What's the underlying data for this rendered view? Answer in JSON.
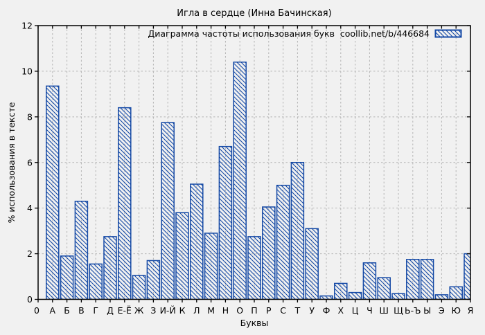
{
  "window": {
    "background": "#f1f1f1"
  },
  "chart_data": {
    "type": "bar",
    "title": "Игла в сердце (Инна Бачинская)",
    "legend_label": "Диаграмма частоты использования букв  coollib.net/b/446684",
    "xlabel": "Буквы",
    "ylabel": "% использования в тексте",
    "x_origin_label": "0",
    "categories": [
      "А",
      "Б",
      "В",
      "Г",
      "Д",
      "Е-Ё",
      "Ж",
      "З",
      "И-Й",
      "К",
      "Л",
      "М",
      "Н",
      "О",
      "П",
      "Р",
      "С",
      "Т",
      "У",
      "Ф",
      "Х",
      "Ц",
      "Ч",
      "Ш",
      "Щ",
      "Ь-Ъ",
      "Ы",
      "Э",
      "Ю",
      "Я"
    ],
    "values": [
      9.35,
      1.9,
      4.3,
      1.55,
      2.75,
      8.4,
      1.05,
      1.7,
      7.75,
      3.8,
      5.05,
      2.9,
      6.7,
      10.4,
      2.75,
      4.05,
      5.0,
      6.0,
      3.1,
      0.15,
      0.7,
      0.3,
      1.6,
      0.95,
      0.25,
      1.75,
      1.75,
      0.2,
      0.55,
      2.0
    ],
    "ylim": [
      0,
      12
    ],
    "yticks": [
      0,
      2,
      4,
      6,
      8,
      10,
      12
    ],
    "grid": true,
    "grid_style": "dashed",
    "legend_position": "top-right-inside",
    "bar_style": "diagonal-hatch",
    "colors": {
      "bar": "#1348a5",
      "grid": "#b4b4b4",
      "axis": "#000000",
      "text": "#000000",
      "background": "#f1f1f1"
    }
  }
}
